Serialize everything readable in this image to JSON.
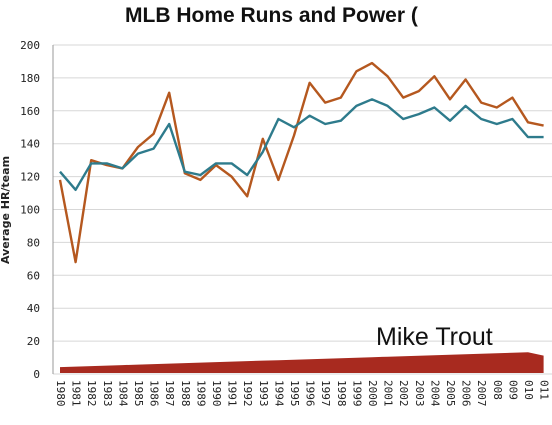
{
  "chart_data": {
    "type": "line",
    "title": "MLB Home Runs and Power (",
    "ylabel": "Average HR/team",
    "xlabel": "",
    "ylim": [
      0,
      200
    ],
    "yticks": [
      0,
      20,
      40,
      60,
      80,
      100,
      120,
      140,
      160,
      180,
      200
    ],
    "x": [
      "1980",
      "1981",
      "1982",
      "1983",
      "1984",
      "1985",
      "1986",
      "1987",
      "1988",
      "1989",
      "1990",
      "1991",
      "1992",
      "1993",
      "1994",
      "1995",
      "1996",
      "1997",
      "1998",
      "1999",
      "2000",
      "2001",
      "2002",
      "2003",
      "2004",
      "2005",
      "2006",
      "2007",
      "2008",
      "2009",
      "2010",
      "2011"
    ],
    "x_tick_labels": [
      "1980",
      "1981",
      "1982",
      "1983",
      "1984",
      "1985",
      "1986",
      "1987",
      "1988",
      "1989",
      "1990",
      "1991",
      "1992",
      "1993",
      "1994",
      "1995",
      "1996",
      "1997",
      "1998",
      "1999",
      "2000",
      "2001",
      "2002",
      "2003",
      "2004",
      "2005",
      "2006",
      "2007",
      "008",
      "009",
      "010",
      "011"
    ],
    "grid": true,
    "series": [
      {
        "color": "#b5581f",
        "values": [
          118,
          68,
          130,
          127,
          125,
          138,
          146,
          171,
          122,
          118,
          127,
          120,
          108,
          143,
          118,
          145,
          177,
          165,
          168,
          184,
          189,
          181,
          168,
          172,
          181,
          167,
          179,
          165,
          162,
          168,
          153,
          151
        ]
      },
      {
        "color": "#2e7b8c",
        "values": [
          123,
          112,
          128,
          128,
          125,
          134,
          137,
          152,
          123,
          121,
          128,
          128,
          121,
          135,
          155,
          150,
          157,
          152,
          154,
          163,
          167,
          163,
          155,
          158,
          162,
          154,
          163,
          155,
          152,
          155,
          144,
          144
        ]
      },
      {
        "name": "Mike Trout",
        "color": "#a82a1f",
        "values": [
          3,
          3.3,
          3.6,
          3.9,
          4.2,
          4.5,
          4.8,
          5.1,
          5.4,
          5.7,
          6,
          6.3,
          6.6,
          6.9,
          7.2,
          7.5,
          7.8,
          8.1,
          8.4,
          8.7,
          9,
          9.3,
          9.6,
          9.9,
          10.2,
          10.5,
          10.8,
          11.1,
          11.4,
          11.7,
          12,
          10
        ]
      }
    ],
    "annotations": [
      {
        "text": "Mike Trout",
        "x": "2004",
        "y": 22
      }
    ]
  }
}
